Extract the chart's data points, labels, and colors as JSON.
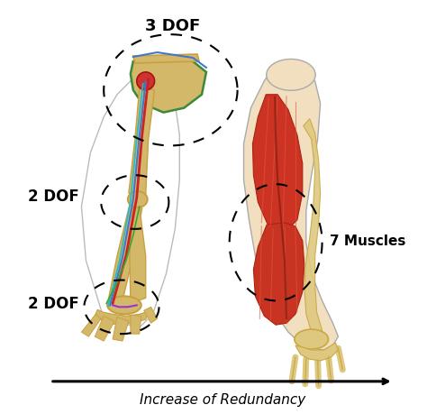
{
  "bg_color": "#ffffff",
  "label_3dof": "3 DOF",
  "label_2dof_elbow": "2 DOF",
  "label_2dof_wrist": "2 DOF",
  "label_7muscles": "7 Muscles",
  "label_arrow": "Increase of Redundancy",
  "bone_color": "#D4B86A",
  "bone_edge": "#C8A040",
  "scapula_edge": "#3A8A3A",
  "red_line": "#CC2222",
  "blue_line": "#4477CC",
  "cyan_line": "#22BBCC",
  "green_line": "#33AA33",
  "purple_line": "#9933CC",
  "muscle_red": "#CC3322",
  "muscle_dark": "#AA2211",
  "muscle_light": "#DD6644",
  "skin_fill": "#F2DFC0",
  "skin_edge": "#AAAAAA",
  "arrow_color": "#111111"
}
